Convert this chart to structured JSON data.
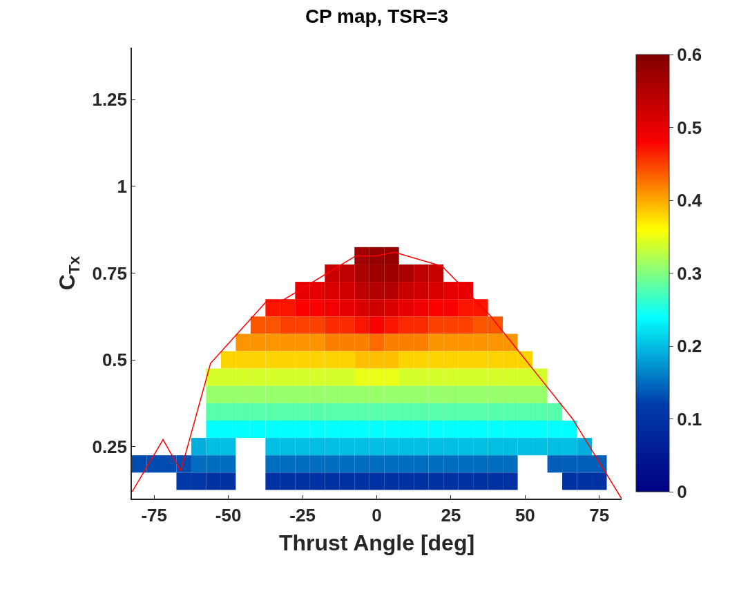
{
  "chart_data": {
    "type": "heatmap",
    "title": "CP map, TSR=3",
    "xlabel": "Thrust Angle [deg]",
    "ylabel": "C$_{Tx}$",
    "x": [
      -80,
      -75,
      -70,
      -65,
      -60,
      -55,
      -50,
      -45,
      -40,
      -35,
      -30,
      -25,
      -20,
      -15,
      -10,
      -5,
      0,
      5,
      10,
      15,
      20,
      25,
      30,
      35,
      40,
      45,
      50,
      55,
      60,
      65,
      70,
      75,
      80
    ],
    "y": [
      0.8,
      0.75,
      0.7,
      0.65,
      0.6,
      0.55,
      0.5,
      0.45,
      0.4,
      0.35,
      0.3,
      0.25,
      0.2,
      0.15
    ],
    "cells": [
      [
        null,
        null,
        null,
        null,
        null,
        null,
        null,
        null,
        null,
        null,
        null,
        null,
        null,
        null,
        null,
        0.57,
        0.58,
        0.58,
        null,
        null,
        null,
        null,
        null,
        null,
        null,
        null,
        null,
        null,
        null,
        null,
        null,
        null,
        null
      ],
      [
        null,
        null,
        null,
        null,
        null,
        null,
        null,
        null,
        null,
        null,
        null,
        null,
        null,
        0.53,
        0.54,
        0.56,
        0.57,
        0.57,
        0.56,
        0.54,
        0.53,
        null,
        null,
        null,
        null,
        null,
        null,
        null,
        null,
        null,
        null,
        null,
        null
      ],
      [
        null,
        null,
        null,
        null,
        null,
        null,
        null,
        null,
        null,
        null,
        null,
        0.5,
        0.5,
        0.51,
        0.52,
        0.54,
        0.55,
        0.55,
        0.53,
        0.52,
        0.51,
        0.5,
        0.5,
        null,
        null,
        null,
        null,
        null,
        null,
        null,
        null,
        null,
        null
      ],
      [
        null,
        null,
        null,
        null,
        null,
        null,
        null,
        null,
        null,
        0.47,
        0.47,
        0.48,
        0.48,
        0.49,
        0.5,
        0.51,
        0.52,
        0.51,
        0.5,
        0.49,
        0.48,
        0.48,
        0.47,
        0.47,
        null,
        null,
        null,
        null,
        null,
        null,
        null,
        null,
        null
      ],
      [
        null,
        null,
        null,
        null,
        null,
        null,
        null,
        null,
        0.44,
        0.44,
        0.45,
        0.45,
        0.45,
        0.46,
        0.46,
        0.47,
        0.48,
        0.47,
        0.46,
        0.46,
        0.45,
        0.45,
        0.45,
        0.44,
        0.44,
        null,
        null,
        null,
        null,
        null,
        null,
        null,
        null
      ],
      [
        null,
        null,
        null,
        null,
        null,
        null,
        null,
        0.41,
        0.41,
        0.41,
        0.41,
        0.41,
        0.41,
        0.42,
        0.42,
        0.42,
        0.43,
        0.42,
        0.42,
        0.42,
        0.41,
        0.41,
        0.41,
        0.41,
        0.41,
        0.41,
        null,
        null,
        null,
        null,
        null,
        null,
        null
      ],
      [
        null,
        null,
        null,
        null,
        null,
        null,
        0.38,
        0.38,
        0.38,
        0.38,
        0.38,
        0.38,
        0.38,
        0.38,
        0.38,
        0.39,
        0.39,
        0.39,
        0.38,
        0.38,
        0.38,
        0.38,
        0.38,
        0.38,
        0.38,
        0.38,
        0.38,
        null,
        null,
        null,
        null,
        null,
        null
      ],
      [
        null,
        null,
        null,
        null,
        null,
        0.34,
        0.34,
        0.34,
        0.34,
        0.34,
        0.34,
        0.34,
        0.34,
        0.34,
        0.34,
        0.35,
        0.35,
        0.35,
        0.34,
        0.34,
        0.34,
        0.34,
        0.34,
        0.34,
        0.34,
        0.34,
        0.34,
        0.34,
        null,
        null,
        null,
        null,
        null
      ],
      [
        null,
        null,
        null,
        null,
        null,
        0.31,
        0.31,
        0.31,
        0.31,
        0.31,
        0.31,
        0.31,
        0.31,
        0.31,
        0.31,
        0.31,
        0.31,
        0.31,
        0.31,
        0.31,
        0.31,
        0.31,
        0.31,
        0.31,
        0.31,
        0.31,
        0.31,
        0.31,
        null,
        null,
        null,
        null,
        null
      ],
      [
        null,
        null,
        null,
        null,
        null,
        0.28,
        0.28,
        0.28,
        0.28,
        0.28,
        0.28,
        0.28,
        0.28,
        0.28,
        0.28,
        0.28,
        0.28,
        0.28,
        0.28,
        0.28,
        0.28,
        0.28,
        0.28,
        0.28,
        0.28,
        0.28,
        0.28,
        0.28,
        0.28,
        null,
        null,
        null,
        null
      ],
      [
        null,
        null,
        null,
        null,
        null,
        0.24,
        0.24,
        0.24,
        0.24,
        0.24,
        0.24,
        0.24,
        0.24,
        0.24,
        0.24,
        0.24,
        0.24,
        0.24,
        0.24,
        0.24,
        0.24,
        0.24,
        0.24,
        0.24,
        0.24,
        0.24,
        0.24,
        0.24,
        0.24,
        0.24,
        null,
        null,
        null
      ],
      [
        null,
        null,
        null,
        null,
        0.19,
        0.2,
        0.2,
        null,
        null,
        0.2,
        0.2,
        0.2,
        0.2,
        0.2,
        0.2,
        0.2,
        0.2,
        0.2,
        0.2,
        0.2,
        0.2,
        0.2,
        0.2,
        0.2,
        0.2,
        0.2,
        0.2,
        0.2,
        0.2,
        0.2,
        0.19,
        null,
        null
      ],
      [
        0.13,
        0.13,
        0.13,
        0.13,
        0.15,
        0.15,
        0.15,
        null,
        null,
        0.15,
        0.15,
        0.15,
        0.15,
        0.15,
        0.15,
        0.15,
        0.15,
        0.15,
        0.15,
        0.15,
        0.15,
        0.15,
        0.15,
        0.15,
        0.15,
        0.15,
        null,
        null,
        0.14,
        0.14,
        0.14,
        0.14,
        null
      ],
      [
        null,
        null,
        null,
        0.11,
        0.11,
        0.1,
        0.1,
        null,
        null,
        0.1,
        0.1,
        0.1,
        0.1,
        0.1,
        0.1,
        0.1,
        0.1,
        0.1,
        0.1,
        0.1,
        0.1,
        0.1,
        0.1,
        0.1,
        0.1,
        0.1,
        null,
        null,
        null,
        0.1,
        0.1,
        0.1,
        null
      ]
    ],
    "clim": [
      0,
      0.6
    ],
    "cticks": [
      0,
      0.1,
      0.2,
      0.3,
      0.4,
      0.5,
      0.6
    ],
    "series": [
      {
        "type": "line",
        "color": "#ff0000",
        "x": [
          -82.4,
          -72,
          -66,
          -56,
          -37,
          -32,
          -7,
          0,
          6,
          22,
          38,
          52,
          66,
          82.5
        ],
        "values": [
          0.12,
          0.27,
          0.18,
          0.49,
          0.67,
          0.67,
          0.8,
          0.8,
          0.81,
          0.77,
          0.63,
          0.48,
          0.33,
          0.1
        ]
      }
    ],
    "xlim": [
      -82.5,
      82.5
    ],
    "ylim": [
      0.1,
      1.4
    ],
    "xticks": [
      -75,
      -50,
      -25,
      0,
      25,
      50,
      75
    ],
    "yticks": [
      0.25,
      0.5,
      0.75,
      1,
      1.25
    ],
    "grid": false
  }
}
